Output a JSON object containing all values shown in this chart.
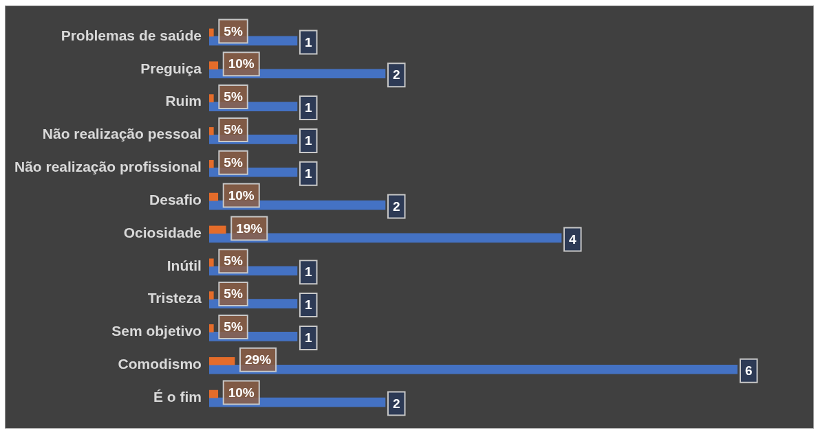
{
  "chart_data": {
    "type": "bar",
    "orientation": "horizontal",
    "categories": [
      "Problemas de saúde",
      "Preguiça",
      "Ruim",
      "Não realização pessoal",
      "Não realização profissional",
      "Desafio",
      "Ociosidade",
      "Inútil",
      "Tristeza",
      "Sem objetivo",
      "Comodismo",
      "É o fim"
    ],
    "series": [
      {
        "color": "#e46c2a",
        "values": [
          0.05,
          0.1,
          0.05,
          0.05,
          0.05,
          0.1,
          0.19,
          0.05,
          0.05,
          0.05,
          0.29,
          0.1
        ],
        "value_labels": [
          "5%",
          "10%",
          "5%",
          "5%",
          "5%",
          "10%",
          "19%",
          "5%",
          "5%",
          "5%",
          "29%",
          "10%"
        ]
      },
      {
        "color": "#4472c4",
        "values": [
          1,
          2,
          1,
          1,
          1,
          2,
          4,
          1,
          1,
          1,
          6,
          2
        ],
        "value_labels": [
          "1",
          "2",
          "1",
          "1",
          "1",
          "2",
          "4",
          "1",
          "1",
          "1",
          "6",
          "2"
        ]
      }
    ]
  }
}
